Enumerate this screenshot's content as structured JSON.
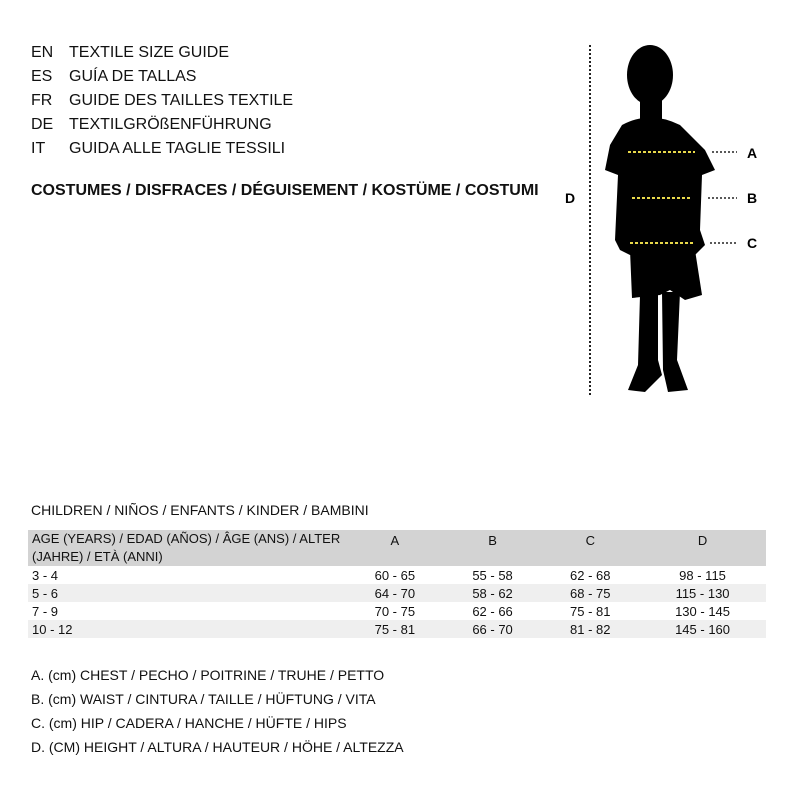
{
  "titles": [
    {
      "code": "EN",
      "text": "TEXTILE SIZE GUIDE"
    },
    {
      "code": "ES",
      "text": "GUÍA DE TALLAS"
    },
    {
      "code": "FR",
      "text": "GUIDE DES TAILLES TEXTILE"
    },
    {
      "code": "DE",
      "text": "TEXTILGRÖßENFÜHRUNG"
    },
    {
      "code": "IT",
      "text": "GUIDA ALLE TAGLIE TESSILI"
    }
  ],
  "category": "COSTUMES / DISFRACES / DÉGUISEMENT / KOSTÜME / COSTUMI",
  "figure": {
    "labels": {
      "a": "A",
      "b": "B",
      "c": "C",
      "d": "D"
    },
    "measure_line_color": "#e8d84a"
  },
  "group": "CHILDREN / NIÑOS / ENFANTS / KINDER / BAMBINI",
  "table": {
    "headers": [
      "AGE (YEARS) / EDAD (AÑOS) / ÂGE (ANS) / ALTER (JAHRE) / ETÀ (ANNI)",
      "A",
      "B",
      "C",
      "D"
    ],
    "rows": [
      [
        "3 - 4",
        "60 - 65",
        "55 - 58",
        "62 - 68",
        "98 - 115"
      ],
      [
        "5 - 6",
        "64 - 70",
        "58 - 62",
        "68 - 75",
        "115 - 130"
      ],
      [
        "7 - 9",
        "70 - 75",
        "62 - 66",
        "75 - 81",
        "130 - 145"
      ],
      [
        "10 - 12",
        "75 - 81",
        "66 - 70",
        "81 - 82",
        "145 - 160"
      ]
    ]
  },
  "legend": [
    "A. (cm) CHEST / PECHO / POITRINE / TRUHE / PETTO",
    "B. (cm) WAIST / CINTURA / TAILLE / HÜFTUNG / VITA",
    "C. (cm) HIP / CADERA / HANCHE / HÜFTE / HIPS",
    "D. (CM) HEIGHT / ALTURA / HAUTEUR / HÖHE / ALTEZZA"
  ]
}
